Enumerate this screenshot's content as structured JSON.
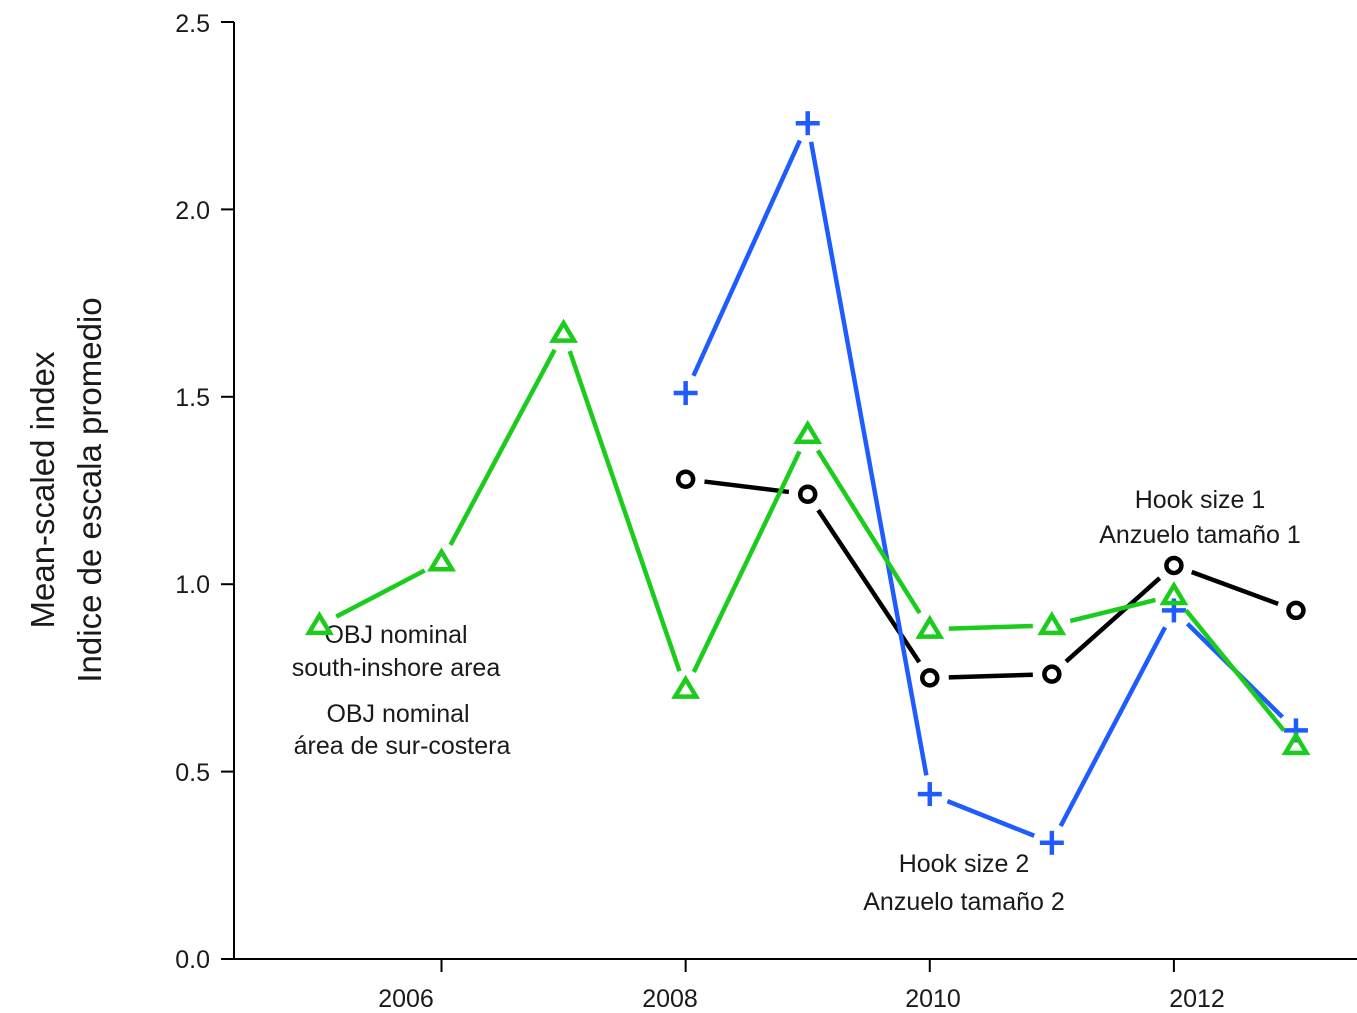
{
  "chart_data": {
    "type": "line",
    "title": "",
    "xlabel": "",
    "ylabel_lines": [
      "Mean-scaled index",
      "Indice de escala promedio"
    ],
    "xlim": [
      2004.3,
      2013.5
    ],
    "ylim": [
      0,
      2.5
    ],
    "xticks": [
      2006,
      2008,
      2010,
      2012
    ],
    "yticks": [
      "0.0",
      "0.5",
      "1.0",
      "1.5",
      "2.0",
      "2.5"
    ],
    "grid": false,
    "series": [
      {
        "marker": "circle",
        "color": "#000000",
        "points": [
          {
            "x": 2008,
            "y": 1.28
          },
          {
            "x": 2009,
            "y": 1.24
          },
          {
            "x": 2010,
            "y": 0.75
          },
          {
            "x": 2011,
            "y": 0.76
          },
          {
            "x": 2012,
            "y": 1.05
          },
          {
            "x": 2013,
            "y": 0.93
          }
        ]
      },
      {
        "marker": "plus",
        "color": "#1f5cff",
        "points": [
          {
            "x": 2008,
            "y": 1.51
          },
          {
            "x": 2009,
            "y": 2.23
          },
          {
            "x": 2010,
            "y": 0.44
          },
          {
            "x": 2011,
            "y": 0.31
          },
          {
            "x": 2012,
            "y": 0.93
          },
          {
            "x": 2013,
            "y": 0.61
          }
        ]
      },
      {
        "marker": "triangle",
        "color": "#1ccc1c",
        "points": [
          {
            "x": 2005,
            "y": 0.89
          },
          {
            "x": 2006,
            "y": 1.06
          },
          {
            "x": 2007,
            "y": 1.67
          },
          {
            "x": 2008,
            "y": 0.72
          },
          {
            "x": 2009,
            "y": 1.4
          },
          {
            "x": 2010,
            "y": 0.88
          },
          {
            "x": 2011,
            "y": 0.89
          },
          {
            "x": 2012,
            "y": 0.97
          },
          {
            "x": 2013,
            "y": 0.57
          }
        ]
      }
    ],
    "annotations": {
      "hook1": [
        "Hook size 1",
        "Anzuelo tamaño 1"
      ],
      "hook2": [
        "Hook size 2",
        "Anzuelo tamaño 2"
      ],
      "obj": [
        "OBJ nominal",
        "south-inshore area",
        "OBJ nominal",
        "área de sur-costera"
      ]
    }
  }
}
